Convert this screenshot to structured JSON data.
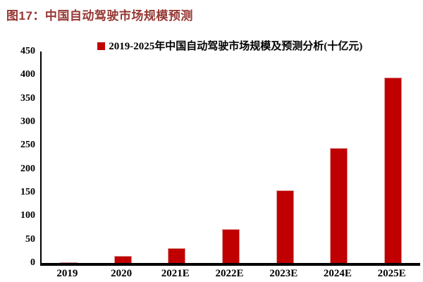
{
  "figure": {
    "title": "图17：中国自动驾驶市场规模预测"
  },
  "colors": {
    "title_text": "#953734",
    "bar_fill": "#c00000",
    "bar_edge": "#d99694",
    "legend_marker": "#c00000",
    "axis_line": "#000000",
    "tick_text": "#000000",
    "background": "#ffffff"
  },
  "chart_data": {
    "type": "bar",
    "title": "图17：中国自动驾驶市场规模预测",
    "legend": "2019-2025年中国自动驾驶市场规模及预测分析(十亿元)",
    "categories": [
      "2019",
      "2020",
      "2021E",
      "2022E",
      "2023E",
      "2024E",
      "2025E"
    ],
    "values": [
      2,
      15,
      32,
      72,
      155,
      245,
      395
    ],
    "xlabel": "",
    "ylabel": "",
    "unit": "十亿元",
    "ylim": [
      0,
      450
    ],
    "yticks": [
      0,
      50,
      100,
      150,
      200,
      250,
      300,
      350,
      400,
      450
    ],
    "grid": false,
    "legend_position": "top-center"
  }
}
